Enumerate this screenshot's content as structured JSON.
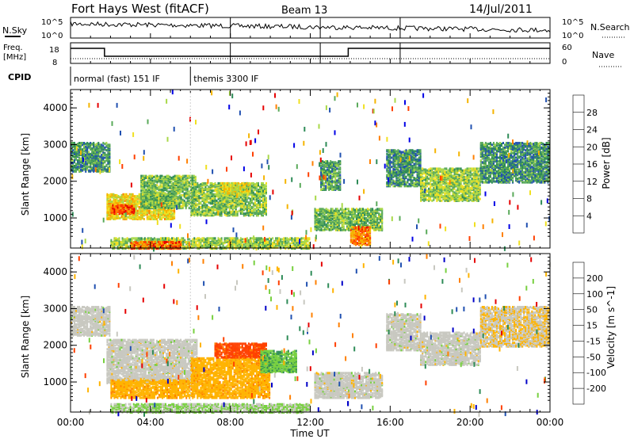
{
  "header": {
    "station": "Fort Hays West (fitACF)",
    "beam": "Beam 13",
    "date": "14/Jul/2011"
  },
  "noise_panel": {
    "left_label": "N.Sky",
    "right_label": "N.Search",
    "y_ticks": [
      "10^5",
      "10^0"
    ]
  },
  "freq_panel": {
    "left_label_top": "Freq.",
    "left_label_bottom": "[MHz]",
    "left_ticks": [
      "18",
      "8"
    ],
    "right_label": "Nave",
    "right_ticks": [
      "60",
      "0"
    ]
  },
  "cpid_panel": {
    "label": "CPID",
    "modes": [
      {
        "label": "normal (fast) 151 IF",
        "start_hour": 0,
        "end_hour": 6.0
      },
      {
        "label": "themis 3300 IF",
        "start_hour": 6.0,
        "end_hour": 24
      }
    ]
  },
  "chart_data": [
    {
      "type": "heatmap",
      "title": "",
      "xlabel": "",
      "ylabel": "Slant Range [km]",
      "xlim": [
        0,
        24
      ],
      "ylim": [
        180,
        4500
      ],
      "y_ticks": [
        "4000",
        "3000",
        "2000",
        "1000"
      ],
      "colorbar": {
        "label": "Power [dB]",
        "ticks": [
          "28",
          "24",
          "20",
          "16",
          "12",
          "8",
          "4"
        ],
        "min": 0,
        "max": 32,
        "colors": [
          "#0000e6",
          "#2050b0",
          "#2e8b57",
          "#5aaa5a",
          "#a8d848",
          "#f0e020",
          "#f5b400",
          "#ff8000",
          "#ff4000",
          "#e60000"
        ]
      },
      "regions": [
        {
          "t0": 0.0,
          "t1": 2.0,
          "r0": 2300,
          "r1": 3100,
          "value": 9
        },
        {
          "t0": 1.8,
          "t1": 5.2,
          "r0": 1000,
          "r1": 1700,
          "value": 18
        },
        {
          "t0": 2.0,
          "t1": 3.2,
          "r0": 1150,
          "r1": 1400,
          "value": 27
        },
        {
          "t0": 3.5,
          "t1": 6.3,
          "r0": 1300,
          "r1": 2200,
          "value": 12
        },
        {
          "t0": 6.0,
          "t1": 9.8,
          "r0": 1100,
          "r1": 2000,
          "value": 13
        },
        {
          "t0": 7.5,
          "t1": 9.0,
          "r0": 1700,
          "r1": 2000,
          "value": 17
        },
        {
          "t0": 2.0,
          "t1": 12.0,
          "r0": 200,
          "r1": 500,
          "value": 14
        },
        {
          "t0": 3.0,
          "t1": 5.5,
          "r0": 200,
          "r1": 380,
          "value": 25
        },
        {
          "t0": 12.2,
          "t1": 15.6,
          "r0": 700,
          "r1": 1300,
          "value": 12
        },
        {
          "t0": 14.0,
          "t1": 15.0,
          "r0": 300,
          "r1": 800,
          "value": 24
        },
        {
          "t0": 12.5,
          "t1": 13.5,
          "r0": 1800,
          "r1": 2600,
          "value": 10
        },
        {
          "t0": 15.8,
          "t1": 17.5,
          "r0": 1900,
          "r1": 2900,
          "value": 9
        },
        {
          "t0": 17.5,
          "t1": 20.5,
          "r0": 1500,
          "r1": 2400,
          "value": 14
        },
        {
          "t0": 20.5,
          "t1": 24.0,
          "r0": 2000,
          "r1": 3100,
          "value": 9
        }
      ]
    },
    {
      "type": "heatmap",
      "title": "",
      "xlabel": "Time UT",
      "ylabel": "Slant Range [km]",
      "xlim": [
        0,
        24
      ],
      "ylim": [
        180,
        4500
      ],
      "x_ticks": [
        "00:00",
        "04:00",
        "08:00",
        "12:00",
        "16:00",
        "20:00",
        "00:00"
      ],
      "y_ticks": [
        "4000",
        "3000",
        "2000",
        "1000"
      ],
      "colorbar": {
        "label": "Velocity [m s^-1]",
        "ticks": [
          "200",
          "100",
          "50",
          "15",
          "-15",
          "-50",
          "-100",
          "-200"
        ],
        "min": -250,
        "max": 250,
        "colors": [
          "#e60000",
          "#ff4000",
          "#ff8000",
          "#ffb300",
          "#c8c8c0",
          "#78d040",
          "#2e8b57",
          "#2050b0",
          "#0000c8"
        ]
      },
      "regions": [
        {
          "t0": 0.0,
          "t1": 2.0,
          "r0": 2300,
          "r1": 3100,
          "value": 0
        },
        {
          "t0": 1.8,
          "t1": 6.3,
          "r0": 1000,
          "r1": 2200,
          "value": 0
        },
        {
          "t0": 2.0,
          "t1": 6.0,
          "r0": 600,
          "r1": 1100,
          "value": -60
        },
        {
          "t0": 6.0,
          "t1": 10.0,
          "r0": 600,
          "r1": 1700,
          "value": -60
        },
        {
          "t0": 7.2,
          "t1": 9.8,
          "r0": 1700,
          "r1": 2100,
          "value": -160
        },
        {
          "t0": 9.5,
          "t1": 11.3,
          "r0": 1300,
          "r1": 1900,
          "value": 70
        },
        {
          "t0": 2.0,
          "t1": 12.0,
          "r0": 200,
          "r1": 450,
          "value": 30
        },
        {
          "t0": 12.2,
          "t1": 15.6,
          "r0": 600,
          "r1": 1300,
          "value": 0
        },
        {
          "t0": 15.8,
          "t1": 17.5,
          "r0": 1900,
          "r1": 2900,
          "value": 0
        },
        {
          "t0": 17.5,
          "t1": 20.5,
          "r0": 1500,
          "r1": 2400,
          "value": 0
        },
        {
          "t0": 20.5,
          "t1": 24.0,
          "r0": 2000,
          "r1": 3100,
          "value": -20
        }
      ]
    }
  ]
}
